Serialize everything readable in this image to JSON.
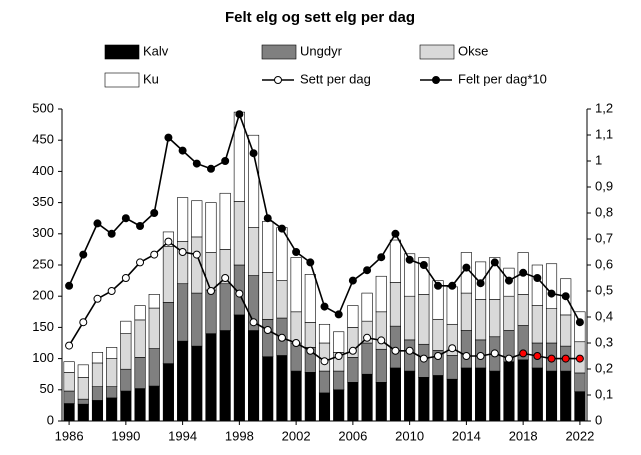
{
  "chart_data": {
    "type": "bar",
    "stacked": true,
    "title": "Felt elg og sett elg per dag",
    "categories": [
      1986,
      null,
      null,
      null,
      1990,
      null,
      null,
      null,
      1994,
      null,
      null,
      null,
      1998,
      null,
      null,
      null,
      2002,
      null,
      null,
      null,
      2006,
      null,
      null,
      null,
      2010,
      null,
      null,
      null,
      2014,
      null,
      null,
      null,
      2018,
      null,
      null,
      null,
      2022
    ],
    "series": [
      {
        "name": "Kalv",
        "color": "#000000",
        "values": [
          28,
          27,
          33,
          37,
          48,
          52,
          56,
          92,
          128,
          120,
          140,
          145,
          170,
          145,
          103,
          105,
          80,
          78,
          45,
          50,
          62,
          75,
          62,
          85,
          80,
          70,
          73,
          67,
          85,
          85,
          80,
          95,
          98,
          85,
          80,
          80,
          47
        ]
      },
      {
        "name": "Ungdyr",
        "color": "#808080",
        "values": [
          20,
          8,
          22,
          18,
          35,
          50,
          60,
          98,
          92,
          85,
          70,
          75,
          80,
          88,
          60,
          60,
          45,
          40,
          35,
          30,
          40,
          50,
          53,
          67,
          50,
          53,
          40,
          38,
          60,
          45,
          55,
          50,
          55,
          40,
          45,
          40,
          30
        ]
      },
      {
        "name": "Okse",
        "color": "#d9d9d9",
        "values": [
          30,
          35,
          38,
          45,
          57,
          60,
          65,
          90,
          68,
          90,
          60,
          55,
          102,
          77,
          75,
          60,
          50,
          40,
          45,
          30,
          48,
          35,
          60,
          70,
          70,
          80,
          50,
          50,
          60,
          65,
          60,
          55,
          50,
          60,
          55,
          50,
          50
        ]
      },
      {
        "name": "Ku",
        "color": "#ffffff",
        "values": [
          17,
          20,
          17,
          18,
          20,
          23,
          22,
          23,
          70,
          58,
          80,
          90,
          143,
          148,
          82,
          85,
          87,
          77,
          30,
          33,
          35,
          45,
          57,
          68,
          68,
          59,
          62,
          60,
          65,
          60,
          67,
          45,
          67,
          65,
          72,
          58,
          48
        ]
      },
      {
        "name": "Sett per dag",
        "type": "line",
        "axis": "y2",
        "color": "#000000",
        "marker_fill": "#ffffff",
        "marker_colors": [
          "#ffffff",
          "#ffffff",
          "#ffffff",
          "#ffffff",
          "#ffffff",
          "#ffffff",
          "#ffffff",
          "#ffffff",
          "#ffffff",
          "#ffffff",
          "#ffffff",
          "#ffffff",
          "#ffffff",
          "#ffffff",
          "#ffffff",
          "#ffffff",
          "#ffffff",
          "#ffffff",
          "#ffffff",
          "#ffffff",
          "#ffffff",
          "#ffffff",
          "#ffffff",
          "#ffffff",
          "#ffffff",
          "#ffffff",
          "#ffffff",
          "#ffffff",
          "#ffffff",
          "#ffffff",
          "#ffffff",
          "#ffffff",
          "#ff0000",
          "#ff0000",
          "#ff0000",
          "#ff0000",
          "#ff0000"
        ],
        "values": [
          0.29,
          0.38,
          0.47,
          0.5,
          0.55,
          0.61,
          0.64,
          0.69,
          0.65,
          0.64,
          0.5,
          0.55,
          0.49,
          0.38,
          0.35,
          0.32,
          0.3,
          0.27,
          0.23,
          0.25,
          0.27,
          0.32,
          0.31,
          0.27,
          0.27,
          0.24,
          0.25,
          0.28,
          0.25,
          0.25,
          0.26,
          0.24,
          0.26,
          0.25,
          0.24,
          0.24,
          0.24
        ]
      },
      {
        "name": "Felt per dag*10",
        "type": "line",
        "axis": "y2",
        "color": "#000000",
        "marker_fill": "#000000",
        "values": [
          0.52,
          0.64,
          0.76,
          0.72,
          0.78,
          0.75,
          0.8,
          1.09,
          1.04,
          0.99,
          0.97,
          1.0,
          1.18,
          1.03,
          0.78,
          0.74,
          0.65,
          0.61,
          0.44,
          0.41,
          0.54,
          0.58,
          0.63,
          0.72,
          0.62,
          0.6,
          0.52,
          0.52,
          0.59,
          0.53,
          0.61,
          0.54,
          0.57,
          0.55,
          0.49,
          0.48,
          0.38
        ]
      }
    ],
    "ylim": [
      0,
      500
    ],
    "yticks": [
      0,
      50,
      100,
      150,
      200,
      250,
      300,
      350,
      400,
      450,
      500
    ],
    "y2lim": [
      0,
      1.2
    ],
    "y2ticks": [
      0,
      {
        "value": 0.1,
        "label": "0,1"
      },
      {
        "value": 0.2,
        "label": "0,2"
      },
      {
        "value": 0.3,
        "label": "0,3"
      },
      {
        "value": 0.4,
        "label": "0,4"
      },
      {
        "value": 0.5,
        "label": "0,5"
      },
      {
        "value": 0.6,
        "label": "0,6"
      },
      {
        "value": 0.7,
        "label": "0,7"
      },
      {
        "value": 0.8,
        "label": "0,8"
      },
      {
        "value": 0.9,
        "label": "0,9"
      },
      1,
      {
        "value": 1.1,
        "label": "1,1"
      },
      {
        "value": 1.2,
        "label": "1,2"
      }
    ],
    "grid": false,
    "legend": "top"
  }
}
